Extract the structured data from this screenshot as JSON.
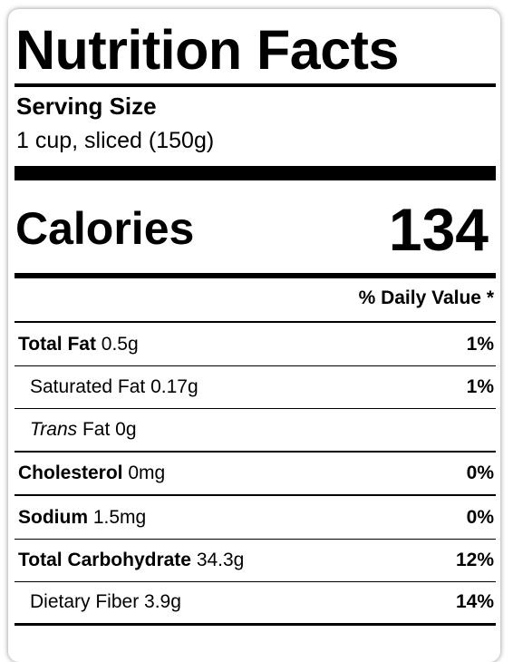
{
  "label": {
    "title": "Nutrition Facts",
    "serving_label": "Serving Size",
    "serving_value": "1 cup, sliced (150g)",
    "calories_label": "Calories",
    "calories_value": "134",
    "daily_value_header": "% Daily Value *",
    "rows": [
      {
        "name": "Total Fat",
        "amount": "0.5g",
        "dv": "1%"
      },
      {
        "name": "Saturated Fat",
        "amount": "0.17g",
        "dv": "1%"
      },
      {
        "name_italic": "Trans",
        "name": "Fat",
        "amount": "0g"
      },
      {
        "name": "Cholesterol",
        "amount": "0mg",
        "dv": "0%"
      },
      {
        "name": "Sodium",
        "amount": "1.5mg",
        "dv": "0%"
      },
      {
        "name": "Total Carbohydrate",
        "amount": "34.3g",
        "dv": "12%"
      },
      {
        "name": "Dietary Fiber",
        "amount": "3.9g",
        "dv": "14%"
      }
    ]
  }
}
